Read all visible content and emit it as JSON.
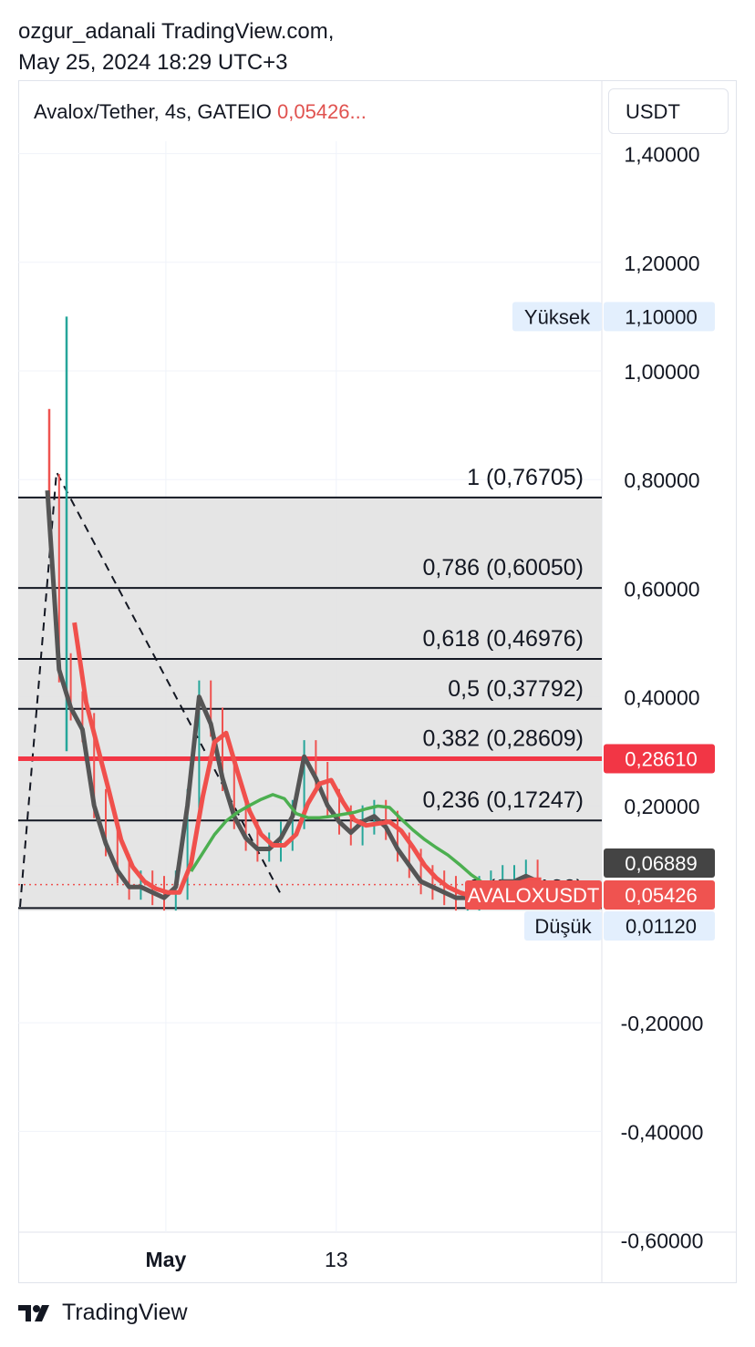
{
  "header": {
    "author_line": "ozgur_adanali TradingView.com,",
    "date_line": "May 25, 2024 18:29 UTC+3"
  },
  "symbol_bar": {
    "symbol": "Avalox/Tether, 4s, GATEIO",
    "price": "0,05426..."
  },
  "currency_button": "USDT",
  "footer": {
    "brand": "TradingView"
  },
  "colors": {
    "up": "#26a69a",
    "down": "#ef5350",
    "ma_red": "#f0504c",
    "ma_green": "#4caf50",
    "ma_dark": "#555555",
    "fib_fill": "#e1e1e1",
    "marker": "#f23645",
    "grid": "#f0f3fa"
  },
  "chart_data": {
    "type": "line",
    "title": "",
    "xlabel": "",
    "ylabel": "",
    "x_ticks": [
      "May",
      "13"
    ],
    "y_ticks": [
      "1,40000",
      "1,20000",
      "1,00000",
      "0,80000",
      "0,60000",
      "0,40000",
      "0,20000",
      "-0,20000",
      "-0,40000",
      "-0,60000"
    ],
    "ylim": [
      -0.62,
      1.43
    ],
    "scale": "linear",
    "grid": true,
    "price_labels": [
      {
        "text": "Yüksek",
        "value": "1,10000",
        "y": 1.1
      },
      {
        "text": "",
        "value": "0,28610",
        "y": 0.2861
      },
      {
        "text": "",
        "value": "0,06889",
        "y": 0.06889
      },
      {
        "text": "AVALOXUSDT",
        "value": "0,05426",
        "y": 0.05426
      },
      {
        "text": "Düşük",
        "value": "0,01120",
        "y": 0.0112
      }
    ],
    "fib_levels": [
      {
        "ratio": "1",
        "label": "1 (0,76705)",
        "price": 0.76705
      },
      {
        "ratio": "0,786",
        "label": "0,786 (0,60050)",
        "price": 0.6005
      },
      {
        "ratio": "0,618",
        "label": "0,618 (0,46976)",
        "price": 0.46976
      },
      {
        "ratio": "0,5",
        "label": "0,5 (0,37792)",
        "price": 0.37792
      },
      {
        "ratio": "0,382",
        "label": "0,382 (0,28609)",
        "price": 0.28609
      },
      {
        "ratio": "0,236",
        "label": "0,236 (0,17247)",
        "price": 0.17247
      },
      {
        "ratio": "0",
        "label": "0 (0,01120)",
        "price": 0.0112
      }
    ],
    "horizontal_line": 0.2861,
    "series": [
      {
        "values_x": [
          0.05,
          0.07,
          0.09,
          0.11,
          0.13,
          0.15,
          0.17,
          0.19,
          0.21,
          0.23,
          0.25,
          0.27,
          0.29,
          0.31,
          0.33,
          0.35,
          0.37,
          0.39,
          0.41,
          0.43,
          0.45,
          0.47,
          0.49,
          0.51,
          0.53,
          0.55,
          0.57,
          0.59,
          0.61,
          0.63,
          0.65,
          0.67,
          0.69,
          0.71,
          0.73,
          0.75,
          0.77,
          0.79,
          0.81,
          0.83,
          0.85,
          0.87,
          0.89
        ],
        "close": [
          0.78,
          0.45,
          0.38,
          0.34,
          0.2,
          0.13,
          0.08,
          0.05,
          0.05,
          0.04,
          0.03,
          0.05,
          0.2,
          0.4,
          0.35,
          0.25,
          0.18,
          0.14,
          0.12,
          0.12,
          0.14,
          0.18,
          0.29,
          0.25,
          0.2,
          0.17,
          0.15,
          0.17,
          0.18,
          0.16,
          0.12,
          0.09,
          0.06,
          0.05,
          0.04,
          0.03,
          0.03,
          0.04,
          0.05,
          0.06,
          0.06,
          0.07,
          0.06
        ]
      }
    ]
  }
}
